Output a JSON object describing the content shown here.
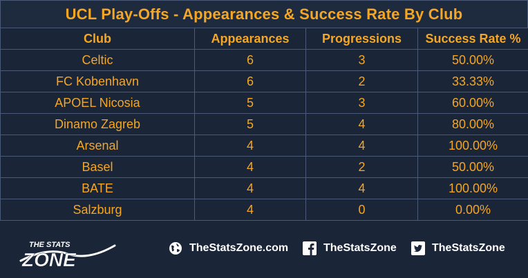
{
  "title": "UCL Play-Offs - Appearances & Success Rate By Club",
  "colors": {
    "background": "#1a2538",
    "text_accent": "#f5a623",
    "grid": "#4a5a78",
    "footer_text": "#ffffff"
  },
  "chart_data": {
    "type": "table",
    "title": "UCL Play-Offs - Appearances & Success Rate By Club",
    "columns": [
      "Club",
      "Appearances",
      "Progressions",
      "Success Rate %"
    ],
    "rows": [
      [
        "Celtic",
        "6",
        "3",
        "50.00%"
      ],
      [
        "FC Kobenhavn",
        "6",
        "2",
        "33.33%"
      ],
      [
        "APOEL Nicosia",
        "5",
        "3",
        "60.00%"
      ],
      [
        "Dinamo Zagreb",
        "5",
        "4",
        "80.00%"
      ],
      [
        "Arsenal",
        "4",
        "4",
        "100.00%"
      ],
      [
        "Basel",
        "4",
        "2",
        "50.00%"
      ],
      [
        "BATE",
        "4",
        "4",
        "100.00%"
      ],
      [
        "Salzburg",
        "4",
        "0",
        "0.00%"
      ]
    ]
  },
  "footer": {
    "logo_line1": "THE STATS",
    "logo_line2": "ZONE",
    "website": "TheStatsZone.com",
    "facebook": "TheStatsZone",
    "twitter": "TheStatsZone",
    "icons": [
      "globe-icon",
      "facebook-icon",
      "twitter-icon"
    ]
  }
}
